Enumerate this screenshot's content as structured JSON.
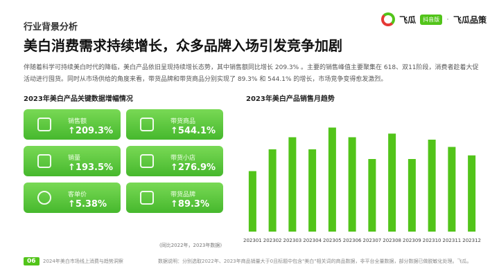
{
  "header": {
    "section": "行业背景分析",
    "title": "美白消费需求持续增长，众多品牌入场引发竞争加剧"
  },
  "logo": {
    "brand_left": "飞瓜",
    "badge": "抖音版",
    "dot": "·",
    "brand_right": "飞瓜品策"
  },
  "intro": "伴随着科学可持续美白时代的降临，美白产品依旧呈现持续增长态势，其中销售额同比增长 209.3% 。主要的销售峰值主要聚集在 618、双11阶段，消费者趁着大促活动进行囤货。同时从市场供给的角度来看，带货品牌和带货商品分别实现了 89.3% 和 544.1% 的增长，市场竞争变得愈发激烈。",
  "left_panel": {
    "title": "2023年美白产品关键数据增幅情况",
    "cards": [
      {
        "label": "销售额",
        "value": "↑209.3%",
        "icon": "sales-icon"
      },
      {
        "label": "带货商品",
        "value": "↑544.1%",
        "icon": "product-icon"
      },
      {
        "label": "销量",
        "value": "↑193.5%",
        "icon": "volume-icon"
      },
      {
        "label": "带货小店",
        "value": "↑276.9%",
        "icon": "shop-icon"
      },
      {
        "label": "客单价",
        "value": "↑5.38%",
        "icon": "price-icon"
      },
      {
        "label": "带货品牌",
        "value": "↑89.3%",
        "icon": "brand-icon"
      }
    ],
    "note": "(同比2022年，2023年数据)"
  },
  "chart_data": {
    "type": "bar",
    "title": "2023年美白产品销售月趋势",
    "categories": [
      "202301",
      "202302",
      "202303",
      "202304",
      "202305",
      "202306",
      "202307",
      "202308",
      "202309",
      "202310",
      "202311",
      "202312"
    ],
    "values": [
      0.5,
      0.68,
      0.78,
      0.68,
      0.86,
      0.78,
      0.6,
      0.81,
      0.6,
      0.76,
      0.7,
      0.63
    ],
    "ylim": [
      0,
      1
    ],
    "color": "#52c41a",
    "grid": false
  },
  "footer": {
    "page": "06",
    "title": "2024年美白市场线上消费与趋势洞察",
    "source": "数据说明：分别选取2022年、2023年商品销量大于0且标题中包含\"美白\"相关词的商品数据，非平台全量数据，部分数据已做脱敏化处理。飞瓜。"
  }
}
